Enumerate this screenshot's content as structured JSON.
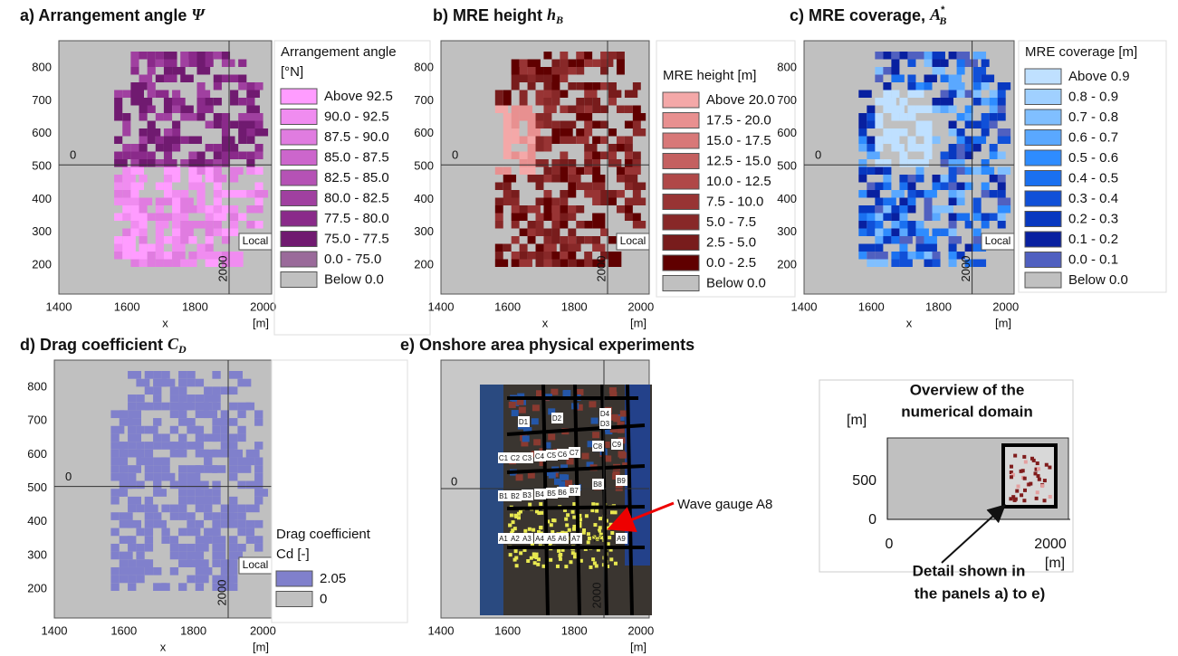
{
  "panels": [
    {
      "title": "a) Arrangement angle",
      "symbol": "Ψ",
      "legend_title": [
        "Arrangement angle",
        "[°N]"
      ],
      "legend": [
        {
          "label": "Above 92.5",
          "color": "#ff9cff"
        },
        {
          "label": "90.0 - 92.5",
          "color": "#f08cf0"
        },
        {
          "label": "87.5 - 90.0",
          "color": "#e07ce0"
        },
        {
          "label": "85.0 - 87.5",
          "color": "#cc66cc"
        },
        {
          "label": "82.5 - 85.0",
          "color": "#b552b5"
        },
        {
          "label": "80.0 - 82.5",
          "color": "#a040a0"
        },
        {
          "label": "77.5 - 80.0",
          "color": "#8a2a8a"
        },
        {
          "label": "75.0 - 77.5",
          "color": "#701a70"
        },
        {
          "label": "0.0 - 75.0",
          "color": "#9a6a9a"
        },
        {
          "label": "Below  0.0",
          "color": "#c0c0c0"
        }
      ],
      "xticks": [
        "1400",
        "1600",
        "1800",
        "2000"
      ],
      "yticks": [
        "800",
        "700",
        "600",
        "500",
        "400",
        "300",
        "200"
      ],
      "x_label": "x",
      "x_unit": "[m]",
      "local": "Local",
      "origin_x": "2000",
      "origin_y": "0"
    },
    {
      "title": "b) MRE height",
      "symbol": "h",
      "sub": "B",
      "legend_title": [
        "MRE height [m]"
      ],
      "legend": [
        {
          "label": "Above 20.0",
          "color": "#f4a8a8"
        },
        {
          "label": "17.5 - 20.0",
          "color": "#e89090"
        },
        {
          "label": "15.0 - 17.5",
          "color": "#d87878"
        },
        {
          "label": "12.5 - 15.0",
          "color": "#c46060"
        },
        {
          "label": "10.0 - 12.5",
          "color": "#b04848"
        },
        {
          "label": "7.5 - 10.0",
          "color": "#983434"
        },
        {
          "label": "5.0 -  7.5",
          "color": "#882828"
        },
        {
          "label": "2.5 -  5.0",
          "color": "#781c1c"
        },
        {
          "label": "0.0 -  2.5",
          "color": "#600000"
        },
        {
          "label": "Below  0.0",
          "color": "#c0c0c0"
        }
      ],
      "xticks": [
        "1400",
        "1600",
        "1800",
        "2000"
      ],
      "yticks": [
        "800",
        "700",
        "600",
        "500",
        "400",
        "300",
        "200"
      ],
      "x_label": "x",
      "x_unit": "[m]",
      "local": "Local",
      "origin_x": "2000",
      "origin_y": "0"
    },
    {
      "title": "c) MRE coverage,",
      "symbol": "A",
      "sub": "B",
      "sup": "*",
      "legend_title": [
        "MRE coverage [m]"
      ],
      "legend": [
        {
          "label": "Above 0.9",
          "color": "#bfe0ff"
        },
        {
          "label": "0.8 - 0.9",
          "color": "#a0d0ff"
        },
        {
          "label": "0.7 - 0.8",
          "color": "#80bfff"
        },
        {
          "label": "0.6 - 0.7",
          "color": "#5aa8ff"
        },
        {
          "label": "0.5 - 0.6",
          "color": "#2e8cff"
        },
        {
          "label": "0.4 - 0.5",
          "color": "#1a70f0"
        },
        {
          "label": "0.3 - 0.4",
          "color": "#1050d8"
        },
        {
          "label": "0.2 - 0.3",
          "color": "#0838c0"
        },
        {
          "label": "0.1 - 0.2",
          "color": "#0820a0"
        },
        {
          "label": "0.0 - 0.1",
          "color": "#5060c0"
        },
        {
          "label": "Below 0.0",
          "color": "#c0c0c0"
        }
      ],
      "xticks": [
        "1400",
        "1600",
        "1800",
        "2000"
      ],
      "yticks": [
        "800",
        "700",
        "600",
        "500",
        "400",
        "300",
        "200"
      ],
      "x_label": "x",
      "x_unit": "[m]",
      "local": "Local",
      "origin_x": "2000",
      "origin_y": "0"
    },
    {
      "title": "d) Drag coefficient",
      "symbol": "C",
      "sub": "D",
      "legend_title": [
        "Drag coefficient",
        "Cd [-]"
      ],
      "legend": [
        {
          "label": "2.05",
          "color": "#8080cc"
        },
        {
          "label": "0",
          "color": "#c0c0c0"
        }
      ],
      "xticks": [
        "1400",
        "1600",
        "1800",
        "2000"
      ],
      "yticks": [
        "800",
        "700",
        "600",
        "500",
        "400",
        "300",
        "200"
      ],
      "x_label": "x",
      "x_unit": "[m]",
      "local": "Local",
      "origin_x": "2000",
      "origin_y": "0"
    }
  ],
  "photo_panel": {
    "title": "e) Onshore area physical experiments",
    "xticks": [
      "1400",
      "1600",
      "1800",
      "2000"
    ],
    "x_unit": "[m]",
    "origin_x": "2000",
    "origin_y": "0",
    "gauges": [
      "D1",
      "D2",
      "D3",
      "D4",
      "C1",
      "C2",
      "C3",
      "C4",
      "C5",
      "C6",
      "C7",
      "C8",
      "C9",
      "B1",
      "B2",
      "B3",
      "B4",
      "B5",
      "B6",
      "B7",
      "B8",
      "B9",
      "A1",
      "A2",
      "A3",
      "A4",
      "A5",
      "A6",
      "A7",
      "A9"
    ],
    "annotation": "Wave gauge A8"
  },
  "overview": {
    "title": [
      "Overview of the",
      "numerical domain"
    ],
    "y_unit": "[m]",
    "yticks": [
      "500",
      "0"
    ],
    "xticks": [
      "0",
      "2000"
    ],
    "x_unit": "[m]",
    "annotation": [
      "Detail shown in",
      "the panels a) to e)"
    ]
  }
}
